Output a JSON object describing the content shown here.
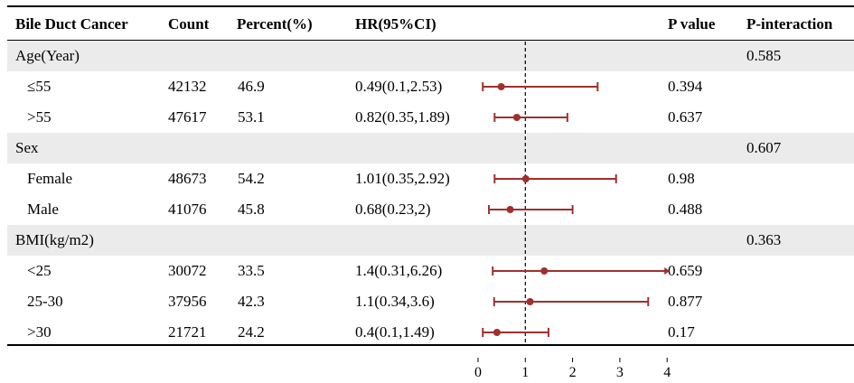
{
  "table": {
    "headers": {
      "group": "Bile Duct Cancer",
      "count": "Count",
      "percent": "Percent(%)",
      "hr": "HR(95%CI)",
      "pvalue": "P value",
      "pinteraction": "P-interaction"
    },
    "rows": [
      {
        "label": "Age(Year)",
        "is_group": true,
        "count": "",
        "percent": "",
        "hr_text": "",
        "p": "",
        "p_int": "0.585"
      },
      {
        "label": "≤55",
        "is_group": false,
        "count": "42132",
        "percent": "46.9",
        "hr_text": "0.49(0.1,2.53)",
        "p": "0.394",
        "p_int": ""
      },
      {
        "label": ">55",
        "is_group": false,
        "count": "47617",
        "percent": "53.1",
        "hr_text": "0.82(0.35,1.89)",
        "p": "0.637",
        "p_int": ""
      },
      {
        "label": "Sex",
        "is_group": true,
        "count": "",
        "percent": "",
        "hr_text": "",
        "p": "",
        "p_int": "0.607"
      },
      {
        "label": "Female",
        "is_group": false,
        "count": "48673",
        "percent": "54.2",
        "hr_text": "1.01(0.35,2.92)",
        "p": "0.98",
        "p_int": ""
      },
      {
        "label": "Male",
        "is_group": false,
        "count": "41076",
        "percent": "45.8",
        "hr_text": "0.68(0.23,2)",
        "p": "0.488",
        "p_int": ""
      },
      {
        "label": "BMI(kg/m2)",
        "is_group": true,
        "count": "",
        "percent": "",
        "hr_text": "",
        "p": "",
        "p_int": "0.363"
      },
      {
        "label": "<25",
        "is_group": false,
        "count": "30072",
        "percent": "33.5",
        "hr_text": "1.4(0.31,6.26)",
        "p": "0.659",
        "p_int": ""
      },
      {
        "label": "25-30",
        "is_group": false,
        "count": "37956",
        "percent": "42.3",
        "hr_text": "1.1(0.34,3.6)",
        "p": "0.877",
        "p_int": ""
      },
      {
        "label": ">30",
        "is_group": false,
        "count": "21721",
        "percent": "24.2",
        "hr_text": "0.4(0.1,1.49)",
        "p": "0.17",
        "p_int": ""
      }
    ]
  },
  "chart_data": {
    "type": "forest",
    "reference_line": 1,
    "xlim": [
      0,
      4
    ],
    "x_ticks": [
      "0",
      "1",
      "2",
      "3",
      "4"
    ],
    "series": [
      {
        "label": "≤55",
        "hr": 0.49,
        "lower": 0.1,
        "upper": 2.53
      },
      {
        "label": ">55",
        "hr": 0.82,
        "lower": 0.35,
        "upper": 1.89
      },
      {
        "label": "Female",
        "hr": 1.01,
        "lower": 0.35,
        "upper": 2.92
      },
      {
        "label": "Male",
        "hr": 0.68,
        "lower": 0.23,
        "upper": 2.0
      },
      {
        "label": "<25",
        "hr": 1.4,
        "lower": 0.31,
        "upper": 6.26
      },
      {
        "label": "25-30",
        "hr": 1.1,
        "lower": 0.34,
        "upper": 3.6
      },
      {
        "label": ">30",
        "hr": 0.4,
        "lower": 0.1,
        "upper": 1.49
      }
    ],
    "colors": {
      "marker": "#a0302e",
      "reference": "#000000",
      "shade": "#ebebeb"
    }
  }
}
